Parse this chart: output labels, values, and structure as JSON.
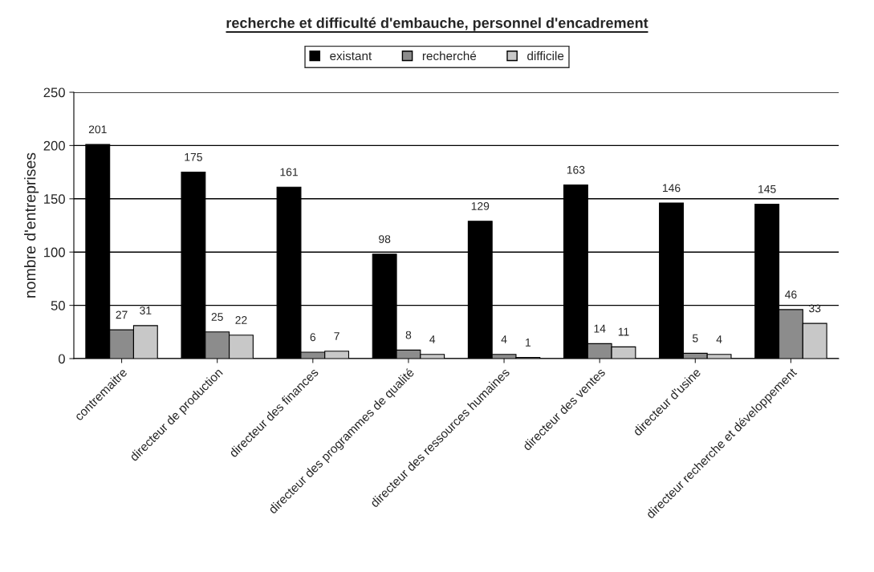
{
  "chart_data": {
    "type": "bar",
    "title": "recherche et difficulté d'embauche, personnel d'encadrement",
    "ylabel": "nombre d'entreprises",
    "categories": [
      "contremaitre",
      "directeur de production",
      "directeur des finances",
      "directeur des programmes de qualité",
      "directeur des ressources humaines",
      "directeur des ventes",
      "directeur d'usine",
      "directeur recherche et développement"
    ],
    "series": [
      {
        "name": "existant",
        "color": "#000000",
        "values": [
          201,
          175,
          161,
          98,
          129,
          163,
          146,
          145
        ]
      },
      {
        "name": "recherché",
        "color": "#8c8c8c",
        "values": [
          27,
          25,
          6,
          8,
          4,
          14,
          5,
          46
        ]
      },
      {
        "name": "difficile",
        "color": "#c8c8c8",
        "values": [
          31,
          22,
          7,
          4,
          1,
          11,
          4,
          33
        ]
      }
    ],
    "ylim": [
      0,
      250
    ],
    "yticks": [
      0,
      50,
      100,
      150,
      200,
      250
    ],
    "grid": "y",
    "legend": "top",
    "data_labels": true
  }
}
